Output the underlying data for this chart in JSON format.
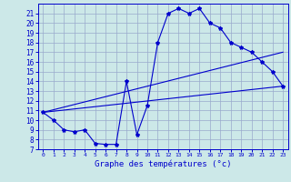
{
  "xlabel": "Graphe des températures (°c)",
  "bg_color": "#cce8e8",
  "grid_color": "#99aacc",
  "line_color": "#0000cc",
  "xlim": [
    -0.5,
    23.5
  ],
  "ylim": [
    7,
    22
  ],
  "xticks": [
    0,
    1,
    2,
    3,
    4,
    5,
    6,
    7,
    8,
    9,
    10,
    11,
    12,
    13,
    14,
    15,
    16,
    17,
    18,
    19,
    20,
    21,
    22,
    23
  ],
  "yticks": [
    7,
    8,
    9,
    10,
    11,
    12,
    13,
    14,
    15,
    16,
    17,
    18,
    19,
    20,
    21
  ],
  "line1_x": [
    0,
    1,
    2,
    3,
    4,
    5,
    6,
    7,
    8,
    9,
    10,
    11,
    12,
    13,
    14,
    15,
    16,
    17,
    18,
    19,
    20,
    21,
    22,
    23
  ],
  "line1_y": [
    10.8,
    10.0,
    9.0,
    8.8,
    9.0,
    7.6,
    7.5,
    7.5,
    14.0,
    8.5,
    11.5,
    18.0,
    21.0,
    21.5,
    21.0,
    21.5,
    20.0,
    19.5,
    18.0,
    17.5,
    17.0,
    16.0,
    15.0,
    13.5
  ],
  "line2_x": [
    0,
    23
  ],
  "line2_y": [
    10.8,
    13.5
  ],
  "line3_x": [
    0,
    23
  ],
  "line3_y": [
    10.8,
    17.0
  ]
}
